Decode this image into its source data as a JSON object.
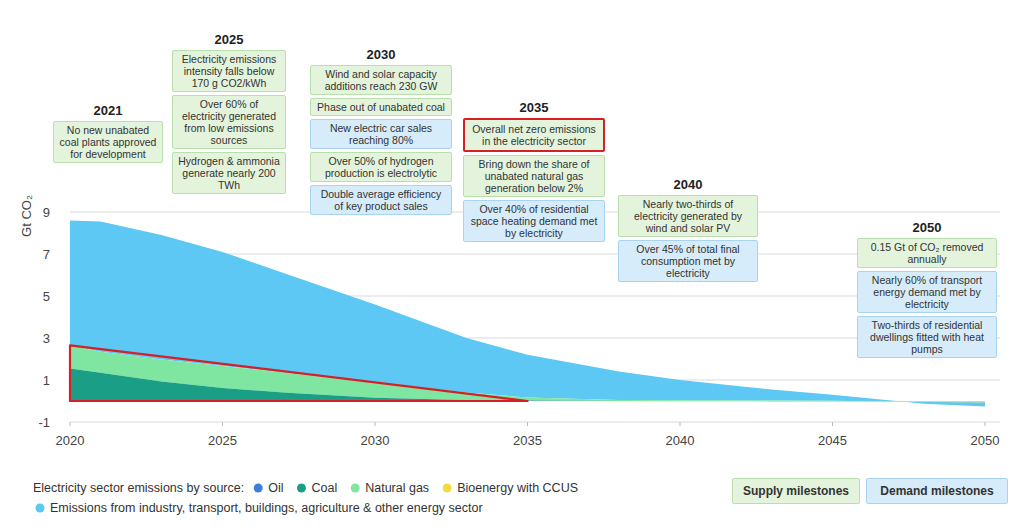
{
  "chart_data": {
    "type": "stacked_area",
    "y_label": "Gt CO₂",
    "x": [
      2020,
      2021,
      2023,
      2025,
      2027,
      2030,
      2033,
      2035,
      2038,
      2040,
      2043,
      2045,
      2048,
      2050
    ],
    "xlim": [
      2020,
      2050
    ],
    "xticks": [
      2020,
      2025,
      2030,
      2035,
      2040,
      2045,
      2050
    ],
    "ylim": [
      -1,
      9
    ],
    "yticks": [
      -1,
      1,
      3,
      5,
      7,
      9
    ],
    "grid": true,
    "stacked": true,
    "legend_title": "Electricity sector emissions by source:",
    "series": [
      {
        "name": "Oil",
        "color": "#3d7fd9",
        "values": [
          0.05,
          0.04,
          0.03,
          0.02,
          0.01,
          0.01,
          0,
          0,
          0,
          0,
          0,
          0,
          0,
          0
        ]
      },
      {
        "name": "Coal",
        "color": "#1b9e86",
        "values": [
          1.5,
          1.3,
          0.9,
          0.6,
          0.4,
          0.15,
          0.05,
          0.02,
          0,
          0,
          0,
          0,
          0,
          0
        ]
      },
      {
        "name": "Natural gas",
        "color": "#7ee6a1",
        "values": [
          1.1,
          1.0,
          1.05,
          1.05,
          0.95,
          0.7,
          0.35,
          0.15,
          0.05,
          0.03,
          0.02,
          0.01,
          0,
          0
        ]
      },
      {
        "name": "Bioenergy with CCUS",
        "color": "#f2dc3c",
        "values": [
          0,
          0,
          0,
          0,
          0,
          0,
          0,
          0,
          -0.01,
          -0.02,
          -0.03,
          -0.04,
          -0.05,
          -0.06
        ]
      },
      {
        "name": "Emissions from industry, transport, buildings, agriculture & other energy sector",
        "color": "#5cc8f3",
        "values": [
          5.95,
          6.21,
          5.92,
          5.43,
          4.74,
          3.74,
          2.6,
          2.03,
          1.35,
          0.97,
          0.53,
          0.29,
          -0.08,
          -0.2
        ]
      }
    ],
    "milestone_legend": [
      {
        "kind": "supply",
        "label": "Supply milestones",
        "color": "#e3f3dc"
      },
      {
        "kind": "demand",
        "label": "Demand milestones",
        "color": "#d6ecfa"
      }
    ],
    "milestones": [
      {
        "year": 2021,
        "items": [
          {
            "kind": "supply",
            "text": "No new unabated coal plants approved for development"
          }
        ]
      },
      {
        "year": 2025,
        "items": [
          {
            "kind": "supply",
            "text": "Electricity emissions intensity falls below 170 g CO2/kWh"
          },
          {
            "kind": "supply",
            "text": "Over 60% of electricity generated from low emissions sources"
          },
          {
            "kind": "supply",
            "text": "Hydrogen & ammonia generate nearly 200 TWh"
          }
        ]
      },
      {
        "year": 2030,
        "items": [
          {
            "kind": "supply",
            "text": "Wind and solar capacity additions reach 230 GW"
          },
          {
            "kind": "supply",
            "text": "Phase out of unabated coal"
          },
          {
            "kind": "demand",
            "text": "New electric car sales reaching 80%"
          },
          {
            "kind": "supply",
            "text": "Over 50% of hydrogen production is electrolytic"
          },
          {
            "kind": "demand",
            "text": "Double average efficiency of key product sales"
          }
        ]
      },
      {
        "year": 2035,
        "items": [
          {
            "kind": "supply",
            "text": "Overall net zero emissions in the electricity sector"
          },
          {
            "kind": "supply",
            "text": "Bring down the share of unabated natural gas generation below 2%"
          },
          {
            "kind": "demand",
            "text": "Over 40% of residential space heating demand met by electricity"
          }
        ]
      },
      {
        "year": 2040,
        "items": [
          {
            "kind": "supply",
            "text": "Nearly two-thirds of electricity generated by wind and solar PV"
          },
          {
            "kind": "demand",
            "text": "Over 45% of total final consumption met by electricity"
          }
        ]
      },
      {
        "year": 2050,
        "items": [
          {
            "kind": "supply",
            "text": "0.15 Gt of CO₂ removed annually"
          },
          {
            "kind": "demand",
            "text": "Nearly 60% of transport energy demand met by electricity"
          },
          {
            "kind": "demand",
            "text": "Two-thirds of residential dwellings fitted with heat pumps"
          }
        ]
      }
    ]
  }
}
